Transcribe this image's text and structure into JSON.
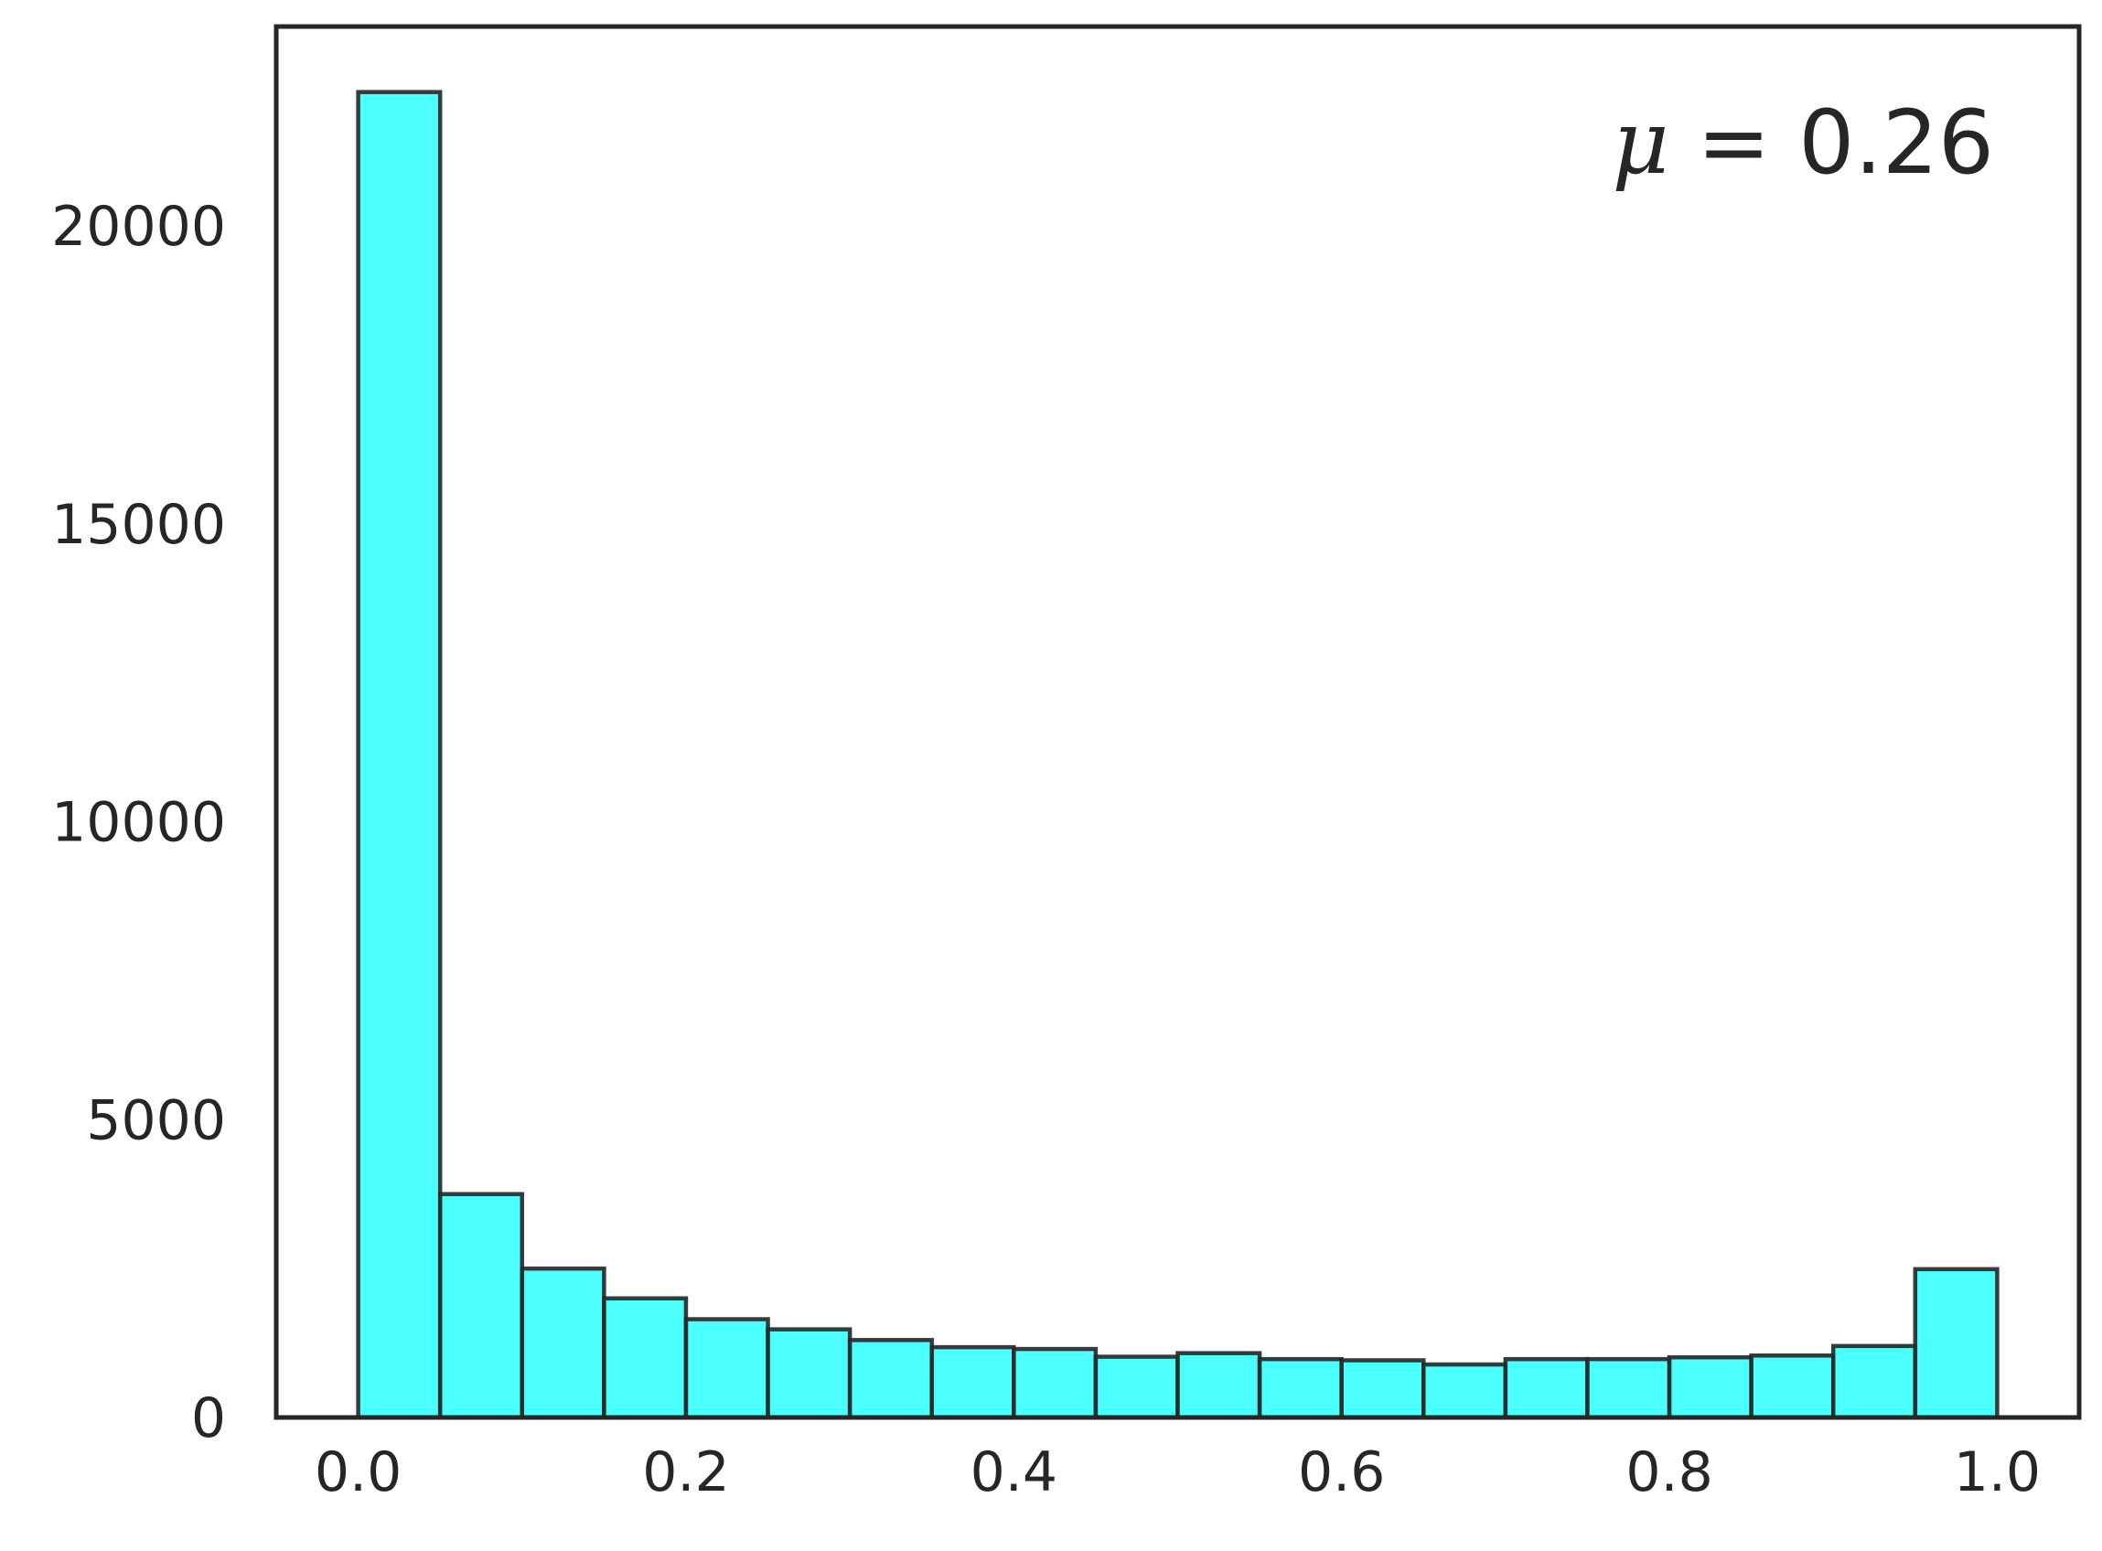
{
  "chart_data": {
    "type": "bar",
    "subtype": "histogram",
    "bin_edges": [
      0.0,
      0.05,
      0.1,
      0.15,
      0.2,
      0.25,
      0.3,
      0.35,
      0.4,
      0.45,
      0.5,
      0.55,
      0.6,
      0.65,
      0.7,
      0.75,
      0.8,
      0.85,
      0.9,
      0.95,
      1.0
    ],
    "values": [
      22250,
      3750,
      2500,
      2000,
      1650,
      1480,
      1300,
      1180,
      1150,
      1020,
      1080,
      980,
      960,
      890,
      980,
      980,
      1010,
      1040,
      1200,
      2490
    ],
    "xlim": [
      -0.05,
      1.05
    ],
    "ylim": [
      0,
      23350
    ],
    "xticks": [
      0.0,
      0.2,
      0.4,
      0.6,
      0.8,
      1.0
    ],
    "xtick_labels": [
      "0.0",
      "0.2",
      "0.4",
      "0.6",
      "0.8",
      "1.0"
    ],
    "yticks": [
      0,
      5000,
      10000,
      15000,
      20000
    ],
    "ytick_labels": [
      "0",
      "5000",
      "10000",
      "15000",
      "20000"
    ],
    "annotation": {
      "symbol": "μ",
      "text": " = 0.26",
      "position": "top-right"
    },
    "grid": false,
    "bar_color": "#00ffff",
    "bar_opacity": 0.7,
    "edge_color": "#262626",
    "title": "",
    "xlabel": "",
    "ylabel": ""
  }
}
